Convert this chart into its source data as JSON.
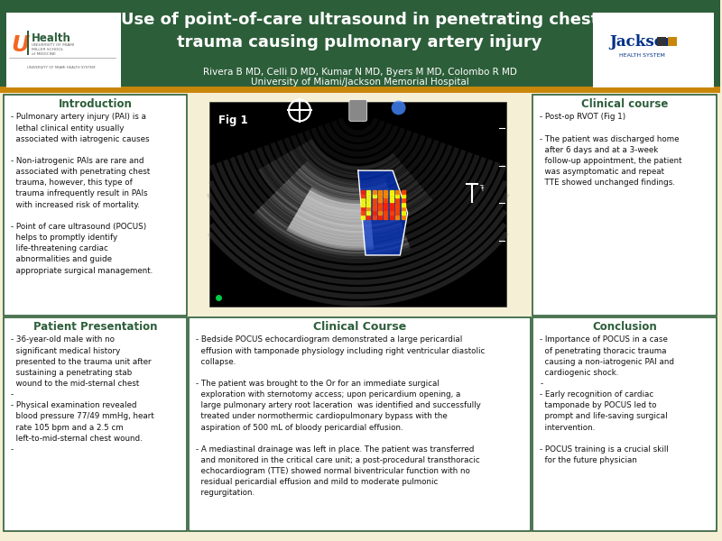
{
  "background_color": "#f5efd5",
  "header_bg": "#2d5e3a",
  "header_border": "#c8860a",
  "title_text": "Use of point-of-care ultrasound in penetrating chest\ntrauma causing pulmonary artery injury",
  "authors_text": "Rivera B MD, Celli D MD, Kumar N MD, Byers M MD, Colombo R MD",
  "institution_text": "University of Miami/Jackson Memorial Hospital",
  "title_color": "#ffffff",
  "authors_color": "#ffffff",
  "section_title_color": "#2d5e3a",
  "section_border_color": "#2d5e3a",
  "section_bg_color": "#ffffff",
  "body_text_color": "#111111",
  "intro_title": "Introduction",
  "intro_text": "- Pulmonary artery injury (PAI) is a\n  lethal clinical entity usually\n  associated with iatrogenic causes\n\n- Non-iatrogenic PAIs are rare and\n  associated with penetrating chest\n  trauma, however, this type of\n  trauma infrequently result in PAIs\n  with increased risk of mortality.\n\n- Point of care ultrasound (POCUS)\n  helps to promptly identify\n  life-threatening cardiac\n  abnormalities and guide\n  appropriate surgical management.",
  "patient_title": "Patient Presentation",
  "patient_text": "- 36-year-old male with no\n  significant medical history\n  presented to the trauma unit after\n  sustaining a penetrating stab\n  wound to the mid-sternal chest\n-\n- Physical examination revealed\n  blood pressure 77/49 mmHg, heart\n  rate 105 bpm and a 2.5 cm\n  left-to-mid-sternal chest wound.\n-",
  "clinical_course_right_title": "Clinical course",
  "clinical_course_right_text": "- Post-op RVOT (Fig 1)\n\n- The patient was discharged home\n  after 6 days and at a 3-week\n  follow-up appointment, the patient\n  was asymptomatic and repeat\n  TTE showed unchanged findings.",
  "clinical_course_title": "Clinical Course",
  "clinical_course_text": "- Bedside POCUS echocardiogram demonstrated a large pericardial\n  effusion with tamponade physiology including right ventricular diastolic\n  collapse.\n\n- The patient was brought to the Or for an immediate surgical\n  exploration with sternotomy access; upon pericardium opening, a\n  large pulmonary artery root laceration  was identified and successfully\n  treated under normothermic cardiopulmonary bypass with the\n  aspiration of 500 mL of bloody pericardial effusion.\n\n- A mediastinal drainage was left in place. The patient was transferred\n  and monitored in the critical care unit; a post-procedural transthoracic\n  echocardiogram (TTE) showed normal biventricular function with no\n  residual pericardial effusion and mild to moderate pulmonic\n  regurgitation.",
  "conclusion_title": "Conclusion",
  "conclusion_text": "- Importance of POCUS in a case\n  of penetrating thoracic trauma\n  causing a non-iatrogenic PAI and\n  cardiogenic shock.\n-\n- Early recognition of cardiac\n  tamponade by POCUS led to\n  prompt and life-saving surgical\n  intervention.\n\n- POCUS training is a crucial skill\n  for the future physician"
}
